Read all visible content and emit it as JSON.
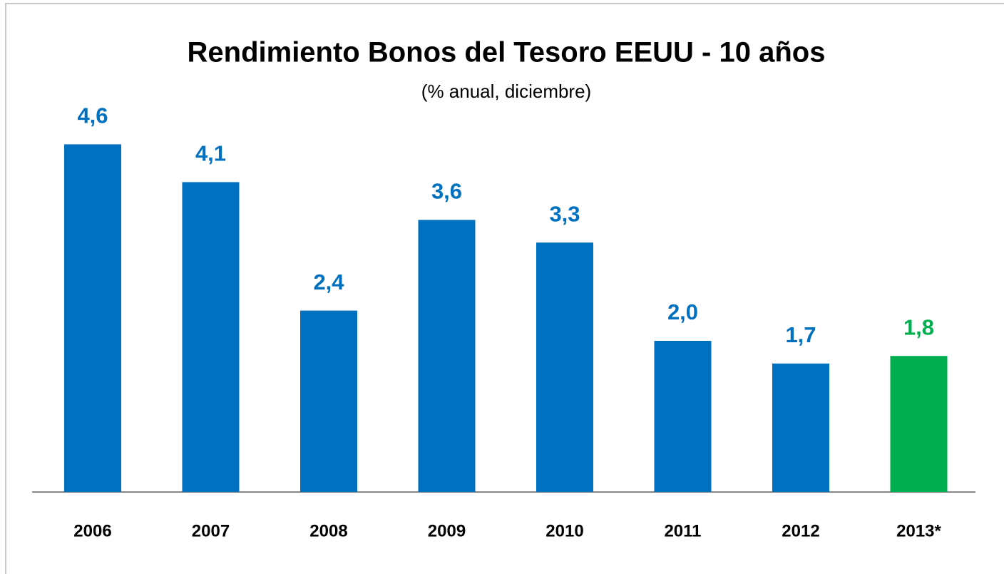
{
  "chart_data": {
    "type": "bar",
    "title": "Rendimiento Bonos del Tesoro EEUU - 10 años",
    "subtitle": "(% anual, diciembre)",
    "categories": [
      "2006",
      "2007",
      "2008",
      "2009",
      "2010",
      "2011",
      "2012",
      "2013*"
    ],
    "values": [
      4.6,
      4.1,
      2.4,
      3.6,
      3.3,
      2.0,
      1.7,
      1.8
    ],
    "value_labels": [
      "4,6",
      "4,1",
      "2,4",
      "3,6",
      "3,3",
      "2,0",
      "1,7",
      "1,8"
    ],
    "colors": [
      "#0070c0",
      "#0070c0",
      "#0070c0",
      "#0070c0",
      "#0070c0",
      "#0070c0",
      "#0070c0",
      "#00b050"
    ]
  }
}
